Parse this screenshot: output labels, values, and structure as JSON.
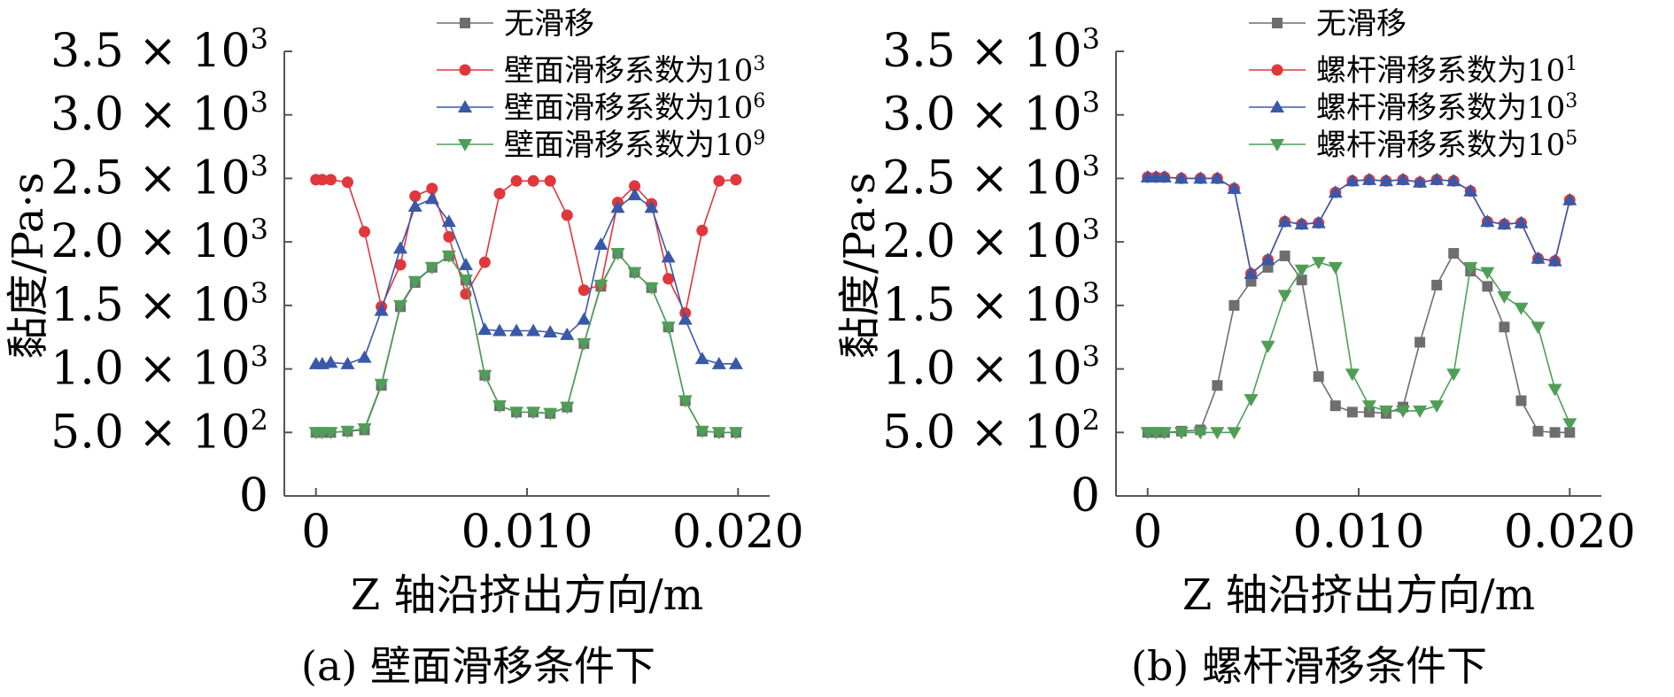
{
  "panels": [
    {
      "caption": "(a) 壁面滑移条件下",
      "xlabel": "Z 轴沿挤出方向/m",
      "ylabel": "黏度/Pa·s",
      "xticks": [
        "0",
        "0.010",
        "0.020"
      ],
      "yticks": [
        {
          "value": 0,
          "mant": "0",
          "exp": ""
        },
        {
          "value": 500,
          "mant": "5.0 × 10",
          "exp": "2"
        },
        {
          "value": 1000,
          "mant": "1.0 × 10",
          "exp": "3"
        },
        {
          "value": 1500,
          "mant": "1.5 × 10",
          "exp": "3"
        },
        {
          "value": 2000,
          "mant": "2.0 × 10",
          "exp": "3"
        },
        {
          "value": 2500,
          "mant": "2.5 × 10",
          "exp": "3"
        },
        {
          "value": 3000,
          "mant": "3.0 × 10",
          "exp": "3"
        },
        {
          "value": 3500,
          "mant": "3.5 × 10",
          "exp": "3"
        }
      ],
      "legend": [
        {
          "label": "无滑移",
          "exp": ""
        },
        {
          "label": "壁面滑移系数为10",
          "exp": "3"
        },
        {
          "label": "壁面滑移系数为10",
          "exp": "6"
        },
        {
          "label": "壁面滑移系数为10",
          "exp": "9"
        }
      ]
    },
    {
      "caption": "(b) 螺杆滑移条件下",
      "xlabel": "Z 轴沿挤出方向/m",
      "ylabel": "黏度/Pa·s",
      "xticks": [
        "0",
        "0.010",
        "0.020"
      ],
      "yticks": [
        {
          "value": 0,
          "mant": "0",
          "exp": ""
        },
        {
          "value": 500,
          "mant": "5.0 × 10",
          "exp": "2"
        },
        {
          "value": 1000,
          "mant": "1.0 × 10",
          "exp": "3"
        },
        {
          "value": 1500,
          "mant": "1.5 × 10",
          "exp": "3"
        },
        {
          "value": 2000,
          "mant": "2.0 × 10",
          "exp": "3"
        },
        {
          "value": 2500,
          "mant": "2.5 × 10",
          "exp": "3"
        },
        {
          "value": 3000,
          "mant": "3.0 × 10",
          "exp": "3"
        },
        {
          "value": 3500,
          "mant": "3.5 × 10",
          "exp": "3"
        }
      ],
      "legend": [
        {
          "label": "无滑移",
          "exp": ""
        },
        {
          "label": "螺杆滑移系数为10",
          "exp": "1"
        },
        {
          "label": "螺杆滑移系数为10",
          "exp": "3"
        },
        {
          "label": "螺杆滑移系数为10",
          "exp": "5"
        }
      ]
    }
  ],
  "chart_data": [
    {
      "type": "line",
      "title": "(a) 壁面滑移条件下",
      "xlabel": "Z 轴沿挤出方向/m",
      "ylabel": "黏度/Pa·s",
      "xlim": [
        -0.0015,
        0.0215
      ],
      "ylim": [
        0,
        3500
      ],
      "x": [
        0,
        0.0003,
        0.0007,
        0.0015,
        0.0023,
        0.0031,
        0.004,
        0.0047,
        0.0055,
        0.0063,
        0.0071,
        0.008,
        0.0087,
        0.0095,
        0.0103,
        0.0111,
        0.0119,
        0.0127,
        0.0135,
        0.0143,
        0.0151,
        0.0159,
        0.0167,
        0.0175,
        0.0183,
        0.0191,
        0.0199
      ],
      "series": [
        {
          "name": "无滑移",
          "color": "#6e6e6e",
          "marker": "square",
          "values": [
            500,
            500,
            500,
            510,
            520,
            870,
            1490,
            1680,
            1800,
            1890,
            1700,
            950,
            710,
            660,
            660,
            650,
            700,
            1200,
            1650,
            1910,
            1760,
            1640,
            1330,
            750,
            510,
            500,
            500
          ]
        },
        {
          "name": "壁面滑移系数为10³",
          "color": "#e0363c",
          "marker": "circle",
          "values": [
            2490,
            2490,
            2490,
            2470,
            2080,
            1490,
            1820,
            2360,
            2420,
            2040,
            1590,
            1840,
            2380,
            2480,
            2480,
            2480,
            2210,
            1620,
            1660,
            2310,
            2440,
            2300,
            1710,
            1440,
            2090,
            2480,
            2490
          ]
        },
        {
          "name": "壁面滑移系数为10⁶",
          "color": "#3a58a8",
          "marker": "triangle-up",
          "values": [
            1040,
            1040,
            1050,
            1040,
            1090,
            1460,
            1950,
            2280,
            2340,
            2160,
            1820,
            1310,
            1300,
            1300,
            1300,
            1290,
            1270,
            1390,
            1980,
            2270,
            2370,
            2270,
            1880,
            1390,
            1080,
            1040,
            1040
          ]
        },
        {
          "name": "壁面滑移系数为10⁹",
          "color": "#4f9e58",
          "marker": "triangle-down",
          "values": [
            500,
            500,
            500,
            510,
            530,
            880,
            1500,
            1690,
            1800,
            1890,
            1700,
            950,
            710,
            660,
            660,
            650,
            700,
            1200,
            1660,
            1910,
            1760,
            1640,
            1330,
            750,
            510,
            500,
            500
          ]
        }
      ]
    },
    {
      "type": "line",
      "title": "(b) 螺杆滑移条件下",
      "xlabel": "Z 轴沿挤出方向/m",
      "ylabel": "黏度/Pa·s",
      "xlim": [
        -0.0015,
        0.0215
      ],
      "ylim": [
        0,
        3500
      ],
      "series": [
        {
          "name": "无滑移",
          "color": "#6e6e6e",
          "marker": "square",
          "x": [
            0,
            0.0004,
            0.0008,
            0.0016,
            0.0025,
            0.0033,
            0.0041,
            0.0049,
            0.0057,
            0.0065,
            0.0073,
            0.0081,
            0.0089,
            0.0097,
            0.0105,
            0.0113,
            0.0121,
            0.0129,
            0.0137,
            0.0145,
            0.0153,
            0.0161,
            0.0169,
            0.0177,
            0.0185,
            0.0193,
            0.02
          ],
          "values": [
            500,
            500,
            500,
            510,
            520,
            870,
            1500,
            1690,
            1800,
            1890,
            1700,
            940,
            710,
            660,
            660,
            650,
            700,
            1210,
            1660,
            1910,
            1770,
            1650,
            1330,
            750,
            510,
            500,
            500
          ]
        },
        {
          "name": "螺杆滑移系数为10¹",
          "color": "#e0363c",
          "marker": "circle",
          "x": [
            0,
            0.0004,
            0.0008,
            0.0016,
            0.0025,
            0.0033,
            0.0041,
            0.0049,
            0.0057,
            0.0065,
            0.0073,
            0.0081,
            0.0089,
            0.0097,
            0.0105,
            0.0113,
            0.0121,
            0.0129,
            0.0137,
            0.0145,
            0.0153,
            0.0161,
            0.0169,
            0.0177,
            0.0185,
            0.0193,
            0.02
          ],
          "values": [
            2510,
            2510,
            2510,
            2500,
            2500,
            2500,
            2420,
            1750,
            1860,
            2160,
            2140,
            2150,
            2390,
            2480,
            2490,
            2480,
            2490,
            2470,
            2490,
            2480,
            2400,
            2160,
            2140,
            2150,
            1870,
            1850,
            2330
          ]
        },
        {
          "name": "螺杆滑移系数为10³",
          "color": "#3a58a8",
          "marker": "triangle-up",
          "x": [
            0,
            0.0004,
            0.0008,
            0.0016,
            0.0025,
            0.0033,
            0.0041,
            0.0049,
            0.0057,
            0.0065,
            0.0073,
            0.0081,
            0.0089,
            0.0097,
            0.0105,
            0.0113,
            0.0121,
            0.0129,
            0.0137,
            0.0145,
            0.0153,
            0.0161,
            0.0169,
            0.0177,
            0.0185,
            0.0193,
            0.02
          ],
          "values": [
            2510,
            2510,
            2510,
            2500,
            2500,
            2500,
            2420,
            1750,
            1860,
            2160,
            2140,
            2150,
            2390,
            2480,
            2490,
            2480,
            2490,
            2470,
            2490,
            2480,
            2400,
            2160,
            2140,
            2150,
            1870,
            1850,
            2330
          ]
        },
        {
          "name": "螺杆滑移系数为10⁵",
          "color": "#4f9e58",
          "marker": "triangle-down",
          "x": [
            0,
            0.0004,
            0.0008,
            0.0016,
            0.0025,
            0.0033,
            0.0041,
            0.0049,
            0.0057,
            0.0065,
            0.0073,
            0.0081,
            0.0089,
            0.0097,
            0.0105,
            0.0113,
            0.0121,
            0.0129,
            0.0137,
            0.0145,
            0.0153,
            0.0161,
            0.0169,
            0.0177,
            0.0185,
            0.0193,
            0.02
          ],
          "values": [
            500,
            500,
            500,
            500,
            500,
            500,
            500,
            760,
            1180,
            1580,
            1780,
            1840,
            1800,
            960,
            710,
            670,
            670,
            670,
            710,
            960,
            1800,
            1760,
            1570,
            1480,
            1330,
            840,
            570
          ]
        }
      ]
    }
  ]
}
